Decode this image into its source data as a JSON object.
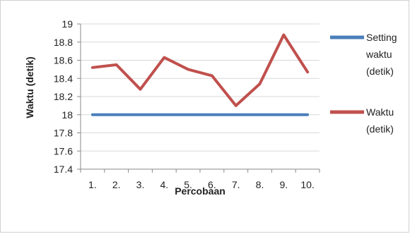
{
  "chart_data": {
    "type": "line",
    "categories": [
      "1.",
      "2.",
      "3.",
      "4.",
      "5.",
      "6.",
      "7.",
      "8.",
      "9.",
      "10."
    ],
    "series": [
      {
        "name": "Setting waktu (detik)",
        "name_lines": [
          "Setting",
          "waktu",
          "(detik)"
        ],
        "color": "#4a7ebb",
        "values": [
          18,
          18,
          18,
          18,
          18,
          18,
          18,
          18,
          18,
          18
        ]
      },
      {
        "name": "Waktu (detik)",
        "name_lines": [
          "Waktu",
          "(detik)"
        ],
        "color": "#c0504d",
        "values": [
          18.52,
          18.55,
          18.28,
          18.63,
          18.5,
          18.43,
          18.1,
          18.34,
          18.88,
          18.47
        ]
      }
    ],
    "yticks": [
      "19",
      "18.8",
      "18.6",
      "18.4",
      "18.2",
      "18",
      "17.8",
      "17.6",
      "17.4"
    ],
    "ylim": [
      17.4,
      19
    ],
    "ystep": 0.2,
    "title": "",
    "xlabel": "Percobaan",
    "ylabel": "Waktu (detik)",
    "grid": true,
    "legend_position": "right"
  }
}
